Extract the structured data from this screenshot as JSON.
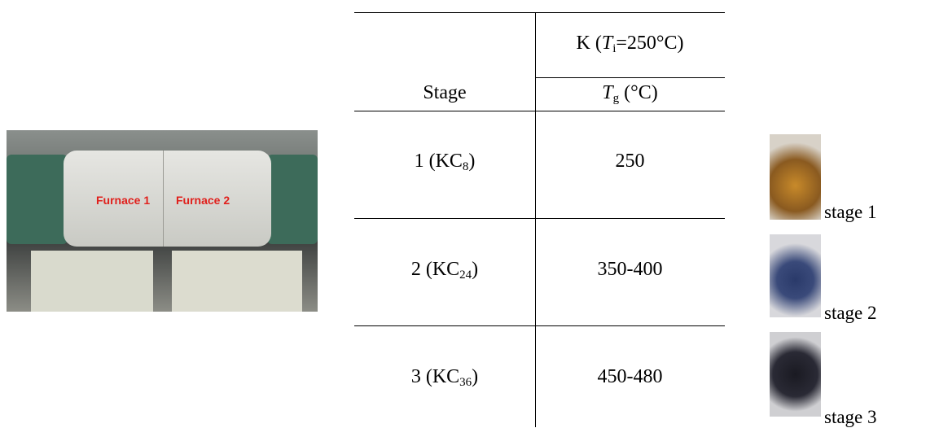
{
  "photo": {
    "labels": [
      "Furnace 1",
      "Furnace 2"
    ]
  },
  "table": {
    "group_header": {
      "pre": "K (",
      "var": "T",
      "sub": "i",
      "post": "=250°C)"
    },
    "columns": [
      "Stage",
      {
        "var": "T",
        "sub": "g",
        "post": " (°C)"
      }
    ],
    "rows": [
      [
        {
          "pre": "1 (KC",
          "sub": "8",
          "post": ")"
        },
        "250"
      ],
      [
        {
          "pre": "2 (KC",
          "sub": "24",
          "post": ")"
        },
        "350-400"
      ],
      [
        {
          "pre": "3 (KC",
          "sub": "36",
          "post": ")"
        },
        "450-480"
      ]
    ]
  },
  "stages": [
    "stage 1",
    "stage 2",
    "stage 3"
  ]
}
